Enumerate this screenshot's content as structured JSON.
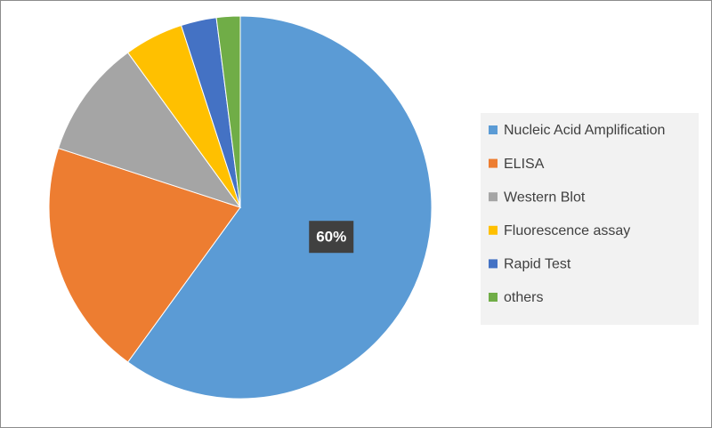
{
  "chart_data": {
    "type": "pie",
    "categories": [
      "Nucleic Acid Amplification",
      "ELISA",
      "Western Blot",
      "Fluorescence assay",
      "Rapid Test",
      "others"
    ],
    "values": [
      60,
      20,
      10,
      5,
      3,
      2
    ],
    "value_labels": [
      "60%",
      null,
      null,
      null,
      null,
      null
    ],
    "colors": [
      "#5b9bd5",
      "#ed7d31",
      "#a5a5a5",
      "#ffc000",
      "#4472c4",
      "#70ad47"
    ],
    "legend": "right"
  }
}
